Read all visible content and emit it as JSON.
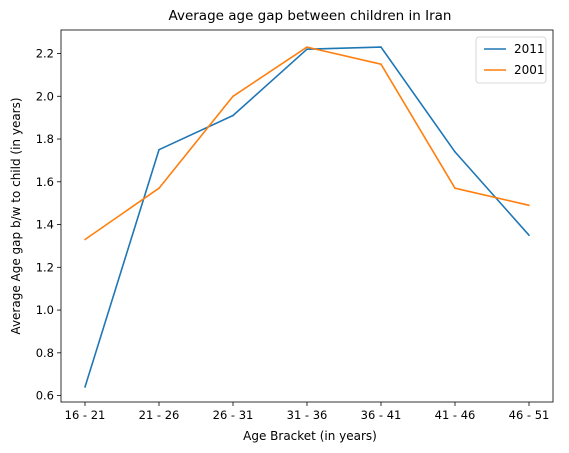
{
  "chart_data": {
    "type": "line",
    "title": "Average age gap between children in Iran",
    "xlabel": "Age Bracket (in years)",
    "ylabel": "Average Age gap b/w to child (in years)",
    "categories": [
      "16 - 21",
      "21 - 26",
      "26 - 31",
      "31 - 36",
      "36 - 41",
      "41 - 46",
      "46 - 51"
    ],
    "ylim": [
      0.57,
      2.31
    ],
    "yticks": [
      0.6,
      0.8,
      1.0,
      1.2,
      1.4,
      1.6,
      1.8,
      2.0,
      2.2
    ],
    "grid": false,
    "legend_position": "top-right",
    "series": [
      {
        "name": "2011",
        "color": "#1f77b4",
        "values": [
          0.64,
          1.75,
          1.91,
          2.22,
          2.23,
          1.74,
          1.35
        ]
      },
      {
        "name": "2001",
        "color": "#ff7f0e",
        "values": [
          1.33,
          1.57,
          2.0,
          2.23,
          2.15,
          1.57,
          1.49
        ]
      }
    ]
  }
}
